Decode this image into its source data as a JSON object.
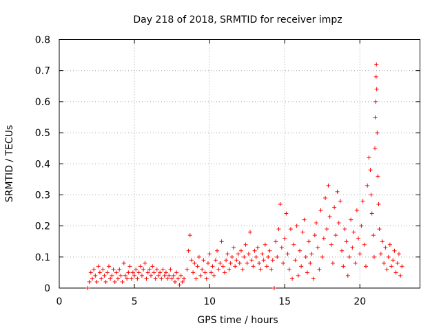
{
  "chart_data": {
    "type": "scatter",
    "title": "Day 218 of 2018, SRMTID for receiver impz",
    "xlabel": "GPS time / hours",
    "ylabel": "SRMTID / TECUs",
    "xlim": [
      0,
      24
    ],
    "ylim": [
      0,
      0.8
    ],
    "xticks": [
      0,
      5,
      10,
      15,
      20
    ],
    "xtick_labels": [
      "0",
      "5",
      "10",
      "15",
      "20"
    ],
    "yticks": [
      0,
      0.1,
      0.2,
      0.3,
      0.4,
      0.5,
      0.6,
      0.7,
      0.8
    ],
    "ytick_labels": [
      "0",
      "0.1",
      "0.2",
      "0.3",
      "0.4",
      "0.5",
      "0.6",
      "0.7",
      "0.8"
    ],
    "grid": true,
    "marker": "+",
    "color": "#ff0000",
    "series": [
      {
        "name": "SRMTID",
        "points": [
          [
            1.9,
            0.0
          ],
          [
            14.3,
            0.0
          ],
          [
            2.0,
            0.02
          ],
          [
            2.1,
            0.05
          ],
          [
            2.2,
            0.03
          ],
          [
            2.3,
            0.06
          ],
          [
            2.4,
            0.04
          ],
          [
            2.5,
            0.02
          ],
          [
            2.6,
            0.07
          ],
          [
            2.7,
            0.05
          ],
          [
            2.8,
            0.03
          ],
          [
            2.9,
            0.06
          ],
          [
            3.0,
            0.04
          ],
          [
            3.1,
            0.02
          ],
          [
            3.2,
            0.05
          ],
          [
            3.3,
            0.07
          ],
          [
            3.4,
            0.03
          ],
          [
            3.5,
            0.04
          ],
          [
            3.6,
            0.06
          ],
          [
            3.7,
            0.02
          ],
          [
            3.8,
            0.05
          ],
          [
            3.9,
            0.03
          ],
          [
            4.0,
            0.06
          ],
          [
            4.1,
            0.04
          ],
          [
            4.2,
            0.02
          ],
          [
            4.3,
            0.08
          ],
          [
            4.4,
            0.04
          ],
          [
            4.5,
            0.03
          ],
          [
            4.6,
            0.05
          ],
          [
            4.7,
            0.07
          ],
          [
            4.8,
            0.03
          ],
          [
            4.9,
            0.05
          ],
          [
            5.0,
            0.04
          ],
          [
            5.1,
            0.06
          ],
          [
            5.2,
            0.03
          ],
          [
            5.3,
            0.05
          ],
          [
            5.4,
            0.07
          ],
          [
            5.5,
            0.04
          ],
          [
            5.6,
            0.06
          ],
          [
            5.7,
            0.08
          ],
          [
            5.8,
            0.03
          ],
          [
            5.9,
            0.05
          ],
          [
            6.0,
            0.06
          ],
          [
            6.1,
            0.04
          ],
          [
            6.2,
            0.07
          ],
          [
            6.3,
            0.05
          ],
          [
            6.4,
            0.03
          ],
          [
            6.5,
            0.06
          ],
          [
            6.6,
            0.04
          ],
          [
            6.7,
            0.05
          ],
          [
            6.8,
            0.03
          ],
          [
            6.9,
            0.06
          ],
          [
            7.0,
            0.04
          ],
          [
            7.1,
            0.05
          ],
          [
            7.2,
            0.03
          ],
          [
            7.3,
            0.04
          ],
          [
            7.4,
            0.06
          ],
          [
            7.5,
            0.03
          ],
          [
            7.6,
            0.04
          ],
          [
            7.7,
            0.02
          ],
          [
            7.8,
            0.05
          ],
          [
            7.9,
            0.03
          ],
          [
            8.0,
            0.01
          ],
          [
            8.1,
            0.04
          ],
          [
            8.2,
            0.02
          ],
          [
            8.3,
            0.03
          ],
          [
            8.5,
            0.06
          ],
          [
            8.6,
            0.12
          ],
          [
            8.7,
            0.17
          ],
          [
            8.8,
            0.09
          ],
          [
            8.9,
            0.05
          ],
          [
            9.0,
            0.08
          ],
          [
            9.1,
            0.03
          ],
          [
            9.2,
            0.07
          ],
          [
            9.3,
            0.1
          ],
          [
            9.4,
            0.04
          ],
          [
            9.5,
            0.06
          ],
          [
            9.6,
            0.09
          ],
          [
            9.7,
            0.05
          ],
          [
            9.8,
            0.03
          ],
          [
            9.9,
            0.08
          ],
          [
            10.0,
            0.11
          ],
          [
            10.1,
            0.05
          ],
          [
            10.2,
            0.07
          ],
          [
            10.3,
            0.04
          ],
          [
            10.4,
            0.09
          ],
          [
            10.5,
            0.12
          ],
          [
            10.6,
            0.06
          ],
          [
            10.7,
            0.08
          ],
          [
            10.8,
            0.15
          ],
          [
            10.9,
            0.07
          ],
          [
            11.0,
            0.05
          ],
          [
            11.1,
            0.09
          ],
          [
            11.2,
            0.11
          ],
          [
            11.3,
            0.06
          ],
          [
            11.4,
            0.08
          ],
          [
            11.5,
            0.1
          ],
          [
            11.6,
            0.13
          ],
          [
            11.7,
            0.07
          ],
          [
            11.8,
            0.09
          ],
          [
            11.9,
            0.11
          ],
          [
            12.0,
            0.08
          ],
          [
            12.1,
            0.12
          ],
          [
            12.2,
            0.06
          ],
          [
            12.3,
            0.1
          ],
          [
            12.4,
            0.14
          ],
          [
            12.5,
            0.08
          ],
          [
            12.6,
            0.11
          ],
          [
            12.7,
            0.18
          ],
          [
            12.8,
            0.09
          ],
          [
            12.9,
            0.07
          ],
          [
            13.0,
            0.12
          ],
          [
            13.1,
            0.1
          ],
          [
            13.2,
            0.13
          ],
          [
            13.3,
            0.08
          ],
          [
            13.4,
            0.06
          ],
          [
            13.5,
            0.11
          ],
          [
            13.6,
            0.09
          ],
          [
            13.7,
            0.14
          ],
          [
            13.8,
            0.07
          ],
          [
            13.9,
            0.1
          ],
          [
            14.0,
            0.12
          ],
          [
            14.1,
            0.06
          ],
          [
            14.2,
            0.09
          ],
          [
            14.4,
            0.15
          ],
          [
            14.5,
            0.1
          ],
          [
            14.6,
            0.19
          ],
          [
            14.7,
            0.27
          ],
          [
            14.8,
            0.13
          ],
          [
            14.9,
            0.08
          ],
          [
            15.0,
            0.16
          ],
          [
            15.1,
            0.24
          ],
          [
            15.2,
            0.11
          ],
          [
            15.3,
            0.06
          ],
          [
            15.4,
            0.19
          ],
          [
            15.5,
            0.03
          ],
          [
            15.6,
            0.14
          ],
          [
            15.7,
            0.09
          ],
          [
            15.8,
            0.2
          ],
          [
            15.9,
            0.04
          ],
          [
            16.0,
            0.12
          ],
          [
            16.1,
            0.07
          ],
          [
            16.2,
            0.18
          ],
          [
            16.3,
            0.22
          ],
          [
            16.4,
            0.1
          ],
          [
            16.5,
            0.05
          ],
          [
            16.6,
            0.15
          ],
          [
            16.7,
            0.08
          ],
          [
            16.8,
            0.11
          ],
          [
            16.9,
            0.03
          ],
          [
            17.0,
            0.17
          ],
          [
            17.1,
            0.21
          ],
          [
            17.2,
            0.13
          ],
          [
            17.3,
            0.06
          ],
          [
            17.4,
            0.25
          ],
          [
            17.5,
            0.1
          ],
          [
            17.6,
            0.16
          ],
          [
            17.7,
            0.29
          ],
          [
            17.8,
            0.19
          ],
          [
            17.9,
            0.33
          ],
          [
            18.0,
            0.23
          ],
          [
            18.1,
            0.14
          ],
          [
            18.2,
            0.08
          ],
          [
            18.3,
            0.26
          ],
          [
            18.4,
            0.17
          ],
          [
            18.5,
            0.31
          ],
          [
            18.6,
            0.21
          ],
          [
            18.7,
            0.28
          ],
          [
            18.8,
            0.12
          ],
          [
            18.9,
            0.07
          ],
          [
            19.0,
            0.19
          ],
          [
            19.1,
            0.15
          ],
          [
            19.2,
            0.04
          ],
          [
            19.3,
            0.1
          ],
          [
            19.4,
            0.22
          ],
          [
            19.5,
            0.13
          ],
          [
            19.6,
            0.18
          ],
          [
            19.7,
            0.08
          ],
          [
            19.8,
            0.25
          ],
          [
            19.9,
            0.16
          ],
          [
            20.0,
            0.11
          ],
          [
            20.1,
            0.2
          ],
          [
            20.2,
            0.28
          ],
          [
            20.3,
            0.14
          ],
          [
            20.4,
            0.07
          ],
          [
            20.5,
            0.33
          ],
          [
            20.6,
            0.42
          ],
          [
            20.7,
            0.38
          ],
          [
            20.75,
            0.3
          ],
          [
            20.8,
            0.24
          ],
          [
            20.9,
            0.17
          ],
          [
            20.95,
            0.1
          ],
          [
            21.0,
            0.45
          ],
          [
            21.02,
            0.55
          ],
          [
            21.05,
            0.6
          ],
          [
            21.08,
            0.68
          ],
          [
            21.1,
            0.72
          ],
          [
            21.12,
            0.64
          ],
          [
            21.15,
            0.5
          ],
          [
            21.2,
            0.36
          ],
          [
            21.25,
            0.27
          ],
          [
            21.3,
            0.19
          ],
          [
            21.4,
            0.11
          ],
          [
            21.5,
            0.15
          ],
          [
            21.6,
            0.08
          ],
          [
            21.7,
            0.13
          ],
          [
            21.8,
            0.06
          ],
          [
            21.9,
            0.1
          ],
          [
            22.0,
            0.14
          ],
          [
            22.1,
            0.07
          ],
          [
            22.2,
            0.09
          ],
          [
            22.3,
            0.12
          ],
          [
            22.4,
            0.05
          ],
          [
            22.5,
            0.08
          ],
          [
            22.6,
            0.11
          ],
          [
            22.7,
            0.04
          ],
          [
            22.8,
            0.07
          ]
        ]
      }
    ]
  }
}
